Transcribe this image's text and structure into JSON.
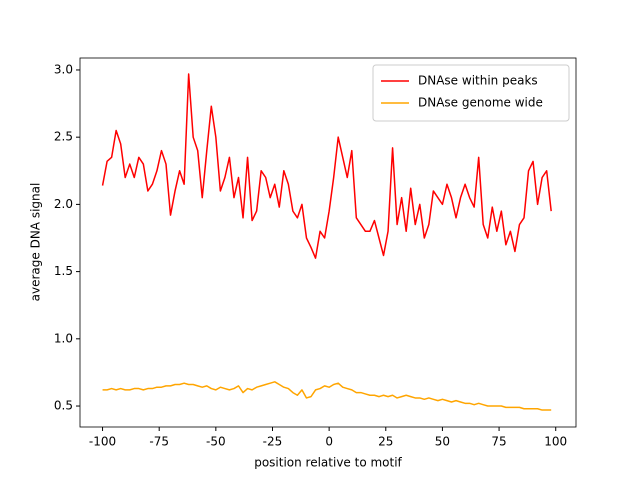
{
  "chart_data": {
    "type": "line",
    "xlabel": "position relative to motif",
    "ylabel": "average DNA signal",
    "x": [
      -100,
      -98,
      -96,
      -94,
      -92,
      -90,
      -88,
      -86,
      -84,
      -82,
      -80,
      -78,
      -76,
      -74,
      -72,
      -70,
      -68,
      -66,
      -64,
      -62,
      -60,
      -58,
      -56,
      -54,
      -52,
      -50,
      -48,
      -46,
      -44,
      -42,
      -40,
      -38,
      -36,
      -34,
      -32,
      -30,
      -28,
      -26,
      -24,
      -22,
      -20,
      -18,
      -16,
      -14,
      -12,
      -10,
      -8,
      -6,
      -4,
      -2,
      0,
      2,
      4,
      6,
      8,
      10,
      12,
      14,
      16,
      18,
      20,
      22,
      24,
      26,
      28,
      30,
      32,
      34,
      36,
      38,
      40,
      42,
      44,
      46,
      48,
      50,
      52,
      54,
      56,
      58,
      60,
      62,
      64,
      66,
      68,
      70,
      72,
      74,
      76,
      78,
      80,
      82,
      84,
      86,
      88,
      90,
      92,
      94,
      96,
      98
    ],
    "series": [
      {
        "name": "DNAse within peaks",
        "color": "#ff0000",
        "values": [
          2.14,
          2.32,
          2.35,
          2.55,
          2.45,
          2.2,
          2.3,
          2.2,
          2.35,
          2.3,
          2.1,
          2.15,
          2.25,
          2.4,
          2.3,
          1.92,
          2.1,
          2.25,
          2.15,
          2.97,
          2.5,
          2.4,
          2.05,
          2.4,
          2.73,
          2.5,
          2.1,
          2.2,
          2.35,
          2.05,
          2.2,
          1.9,
          2.35,
          1.88,
          1.95,
          2.25,
          2.2,
          2.05,
          2.15,
          1.98,
          2.25,
          2.15,
          1.95,
          1.9,
          2.0,
          1.75,
          1.68,
          1.6,
          1.8,
          1.75,
          1.95,
          2.2,
          2.5,
          2.35,
          2.2,
          2.4,
          1.9,
          1.85,
          1.8,
          1.8,
          1.88,
          1.75,
          1.62,
          1.8,
          2.42,
          1.85,
          2.05,
          1.8,
          2.12,
          1.85,
          2.0,
          1.75,
          1.85,
          2.1,
          2.05,
          2.0,
          2.15,
          2.05,
          1.9,
          2.05,
          2.15,
          2.05,
          1.98,
          2.35,
          1.85,
          1.75,
          1.98,
          1.8,
          1.95,
          1.7,
          1.8,
          1.65,
          1.85,
          1.9,
          2.25,
          2.32,
          2.0,
          2.2,
          2.25,
          1.95
        ]
      },
      {
        "name": "DNAse genome wide",
        "color": "#ffa500",
        "values": [
          0.62,
          0.62,
          0.63,
          0.62,
          0.63,
          0.62,
          0.62,
          0.63,
          0.63,
          0.62,
          0.63,
          0.63,
          0.64,
          0.64,
          0.65,
          0.65,
          0.66,
          0.66,
          0.67,
          0.66,
          0.66,
          0.65,
          0.64,
          0.65,
          0.63,
          0.62,
          0.64,
          0.63,
          0.62,
          0.63,
          0.65,
          0.6,
          0.63,
          0.62,
          0.64,
          0.65,
          0.66,
          0.67,
          0.68,
          0.66,
          0.64,
          0.63,
          0.6,
          0.58,
          0.62,
          0.56,
          0.57,
          0.62,
          0.63,
          0.65,
          0.64,
          0.66,
          0.67,
          0.64,
          0.63,
          0.62,
          0.6,
          0.6,
          0.59,
          0.58,
          0.58,
          0.57,
          0.58,
          0.57,
          0.58,
          0.56,
          0.57,
          0.58,
          0.57,
          0.56,
          0.56,
          0.55,
          0.56,
          0.55,
          0.54,
          0.55,
          0.54,
          0.53,
          0.54,
          0.53,
          0.52,
          0.52,
          0.51,
          0.52,
          0.51,
          0.5,
          0.5,
          0.5,
          0.5,
          0.49,
          0.49,
          0.49,
          0.49,
          0.48,
          0.48,
          0.48,
          0.48,
          0.47,
          0.47,
          0.47
        ]
      }
    ],
    "xlim": [
      -109.95,
      108.95
    ],
    "xticks": [
      -100,
      -75,
      -50,
      -25,
      0,
      25,
      50,
      75,
      100
    ],
    "ylim": [
      0.344,
      3.089
    ],
    "yticks": [
      0.5,
      {
        "value": 1,
        "label": "1.0"
      },
      1.5,
      {
        "value": 2,
        "label": "2.0"
      },
      2.5,
      {
        "value": 3,
        "label": "3.0"
      }
    ],
    "legend": "upper right"
  }
}
